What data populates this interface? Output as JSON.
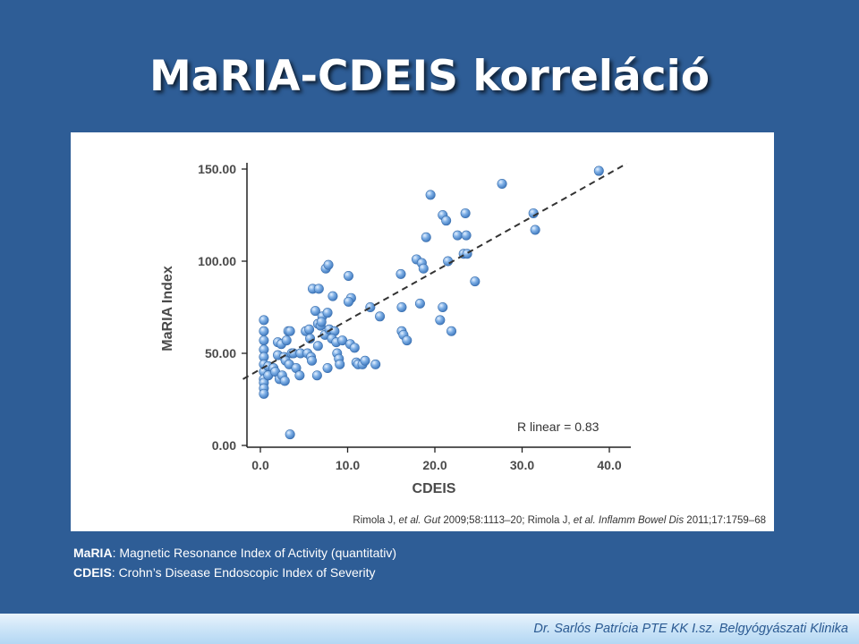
{
  "slide": {
    "title": "MaRIA-CDEIS korreláció"
  },
  "definitions": [
    {
      "term": "MaRIA",
      "text": ": Magnetic Resonance Index of Activity (quantitativ)"
    },
    {
      "term": "CDEIS",
      "text": ": Crohn’s Disease Endoscopic Index of Severity"
    }
  ],
  "footer": {
    "text": "Dr. Sarlós Patrícia PTE KK I.sz. Belgyógyászati Klinika"
  },
  "colors": {
    "background": "#2e5d96",
    "point": "#5f9ad8",
    "fit_line": "#333333"
  },
  "chart_data": {
    "type": "scatter",
    "xlabel": "CDEIS",
    "ylabel": "MaRIA Index",
    "xlim": [
      0,
      42
    ],
    "ylim": [
      0,
      155
    ],
    "x_ticks": [
      "0.0",
      "10.0",
      "20.0",
      "30.0",
      "40.0"
    ],
    "y_ticks": [
      "0.00",
      "50.00",
      "100.00",
      "150.00"
    ],
    "annotation": "R linear = 0.83",
    "citation_parts": [
      {
        "text": "Rimola J, ",
        "italic": false
      },
      {
        "text": "et al. Gut",
        "italic": true
      },
      {
        "text": " 2009;58:1113–20; Rimola J, ",
        "italic": false
      },
      {
        "text": "et al. Inflamm Bowel Dis",
        "italic": true
      },
      {
        "text": " 2011;17:1759–68",
        "italic": false
      }
    ],
    "fit_line": {
      "x": [
        -2,
        42
      ],
      "y": [
        36,
        153
      ]
    },
    "grid": false,
    "points": [
      [
        0.4,
        68
      ],
      [
        0.4,
        62
      ],
      [
        0.4,
        57
      ],
      [
        0.4,
        52
      ],
      [
        0.4,
        48
      ],
      [
        0.4,
        44
      ],
      [
        0.4,
        40
      ],
      [
        0.4,
        36
      ],
      [
        0.4,
        34
      ],
      [
        0.4,
        31
      ],
      [
        0.4,
        28
      ],
      [
        0.9,
        43
      ],
      [
        0.9,
        38
      ],
      [
        1.5,
        42
      ],
      [
        2.0,
        56
      ],
      [
        2.0,
        49
      ],
      [
        1.7,
        40
      ],
      [
        2.2,
        36
      ],
      [
        2.5,
        38
      ],
      [
        2.8,
        35
      ],
      [
        2.4,
        55
      ],
      [
        3.0,
        57
      ],
      [
        3.2,
        62
      ],
      [
        3.4,
        62
      ],
      [
        2.7,
        48
      ],
      [
        2.9,
        46
      ],
      [
        3.3,
        44
      ],
      [
        3.6,
        50
      ],
      [
        3.8,
        50
      ],
      [
        4.1,
        42
      ],
      [
        4.5,
        38
      ],
      [
        4.6,
        50
      ],
      [
        5.2,
        62
      ],
      [
        5.6,
        63
      ],
      [
        5.7,
        58
      ],
      [
        5.4,
        50
      ],
      [
        5.8,
        48
      ],
      [
        5.9,
        46
      ],
      [
        6.0,
        85
      ],
      [
        6.7,
        85
      ],
      [
        6.3,
        73
      ],
      [
        6.6,
        66
      ],
      [
        6.9,
        65
      ],
      [
        7.1,
        70
      ],
      [
        7.0,
        67
      ],
      [
        7.4,
        60
      ],
      [
        6.6,
        54
      ],
      [
        6.5,
        38
      ],
      [
        7.5,
        96
      ],
      [
        7.8,
        98
      ],
      [
        7.7,
        72
      ],
      [
        7.9,
        63
      ],
      [
        8.3,
        81
      ],
      [
        8.5,
        62
      ],
      [
        8.2,
        58
      ],
      [
        8.7,
        56
      ],
      [
        8.8,
        50
      ],
      [
        9.0,
        47
      ],
      [
        9.1,
        44
      ],
      [
        7.7,
        42
      ],
      [
        9.4,
        57
      ],
      [
        10.1,
        92
      ],
      [
        10.4,
        80
      ],
      [
        10.1,
        78
      ],
      [
        10.3,
        55
      ],
      [
        10.8,
        53
      ],
      [
        11.0,
        45
      ],
      [
        11.2,
        44
      ],
      [
        11.7,
        44
      ],
      [
        12.0,
        46
      ],
      [
        12.6,
        75
      ],
      [
        13.2,
        44
      ],
      [
        13.7,
        70
      ],
      [
        16.1,
        93
      ],
      [
        16.2,
        75
      ],
      [
        16.2,
        62
      ],
      [
        16.4,
        60
      ],
      [
        16.8,
        57
      ],
      [
        17.9,
        101
      ],
      [
        18.3,
        77
      ],
      [
        18.5,
        99
      ],
      [
        18.7,
        96
      ],
      [
        19.0,
        113
      ],
      [
        19.5,
        136
      ],
      [
        20.9,
        125
      ],
      [
        21.3,
        122
      ],
      [
        20.6,
        68
      ],
      [
        20.9,
        75
      ],
      [
        21.5,
        100
      ],
      [
        21.9,
        62
      ],
      [
        22.6,
        114
      ],
      [
        23.6,
        114
      ],
      [
        23.5,
        126
      ],
      [
        23.3,
        104
      ],
      [
        23.7,
        104
      ],
      [
        24.6,
        89
      ],
      [
        27.7,
        142
      ],
      [
        31.3,
        126
      ],
      [
        31.5,
        117
      ],
      [
        38.8,
        149
      ],
      [
        3.4,
        6
      ]
    ]
  }
}
